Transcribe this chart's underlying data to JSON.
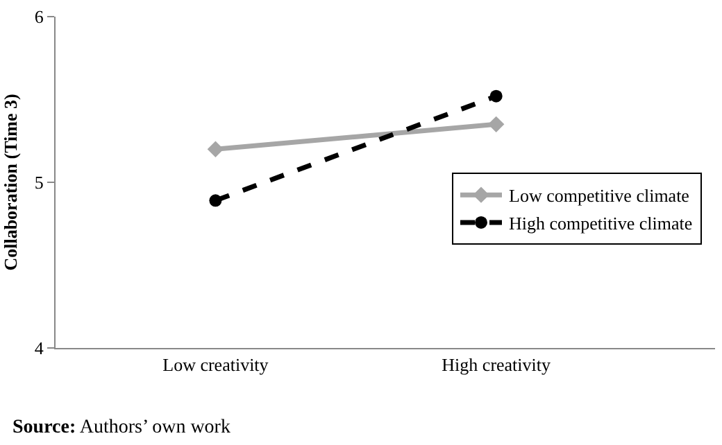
{
  "chart_data": {
    "type": "line",
    "ylabel": "Collaboration (Time 3)",
    "categories": [
      "Low creativity",
      "High creativity"
    ],
    "series": [
      {
        "name": "Low competitive climate",
        "color": "#a6a6a6",
        "values": [
          5.2,
          5.35
        ],
        "marker": "diamond",
        "line_style": "solid"
      },
      {
        "name": "High competitive climate",
        "color": "#000000",
        "values": [
          4.89,
          5.52
        ],
        "marker": "circle",
        "line_style": "dashed"
      }
    ],
    "ylim": [
      4,
      6
    ],
    "yticks": [
      4,
      5,
      6
    ],
    "grid": false,
    "legend": "right",
    "annotations": [
      "Source: Authors’ own work"
    ]
  }
}
